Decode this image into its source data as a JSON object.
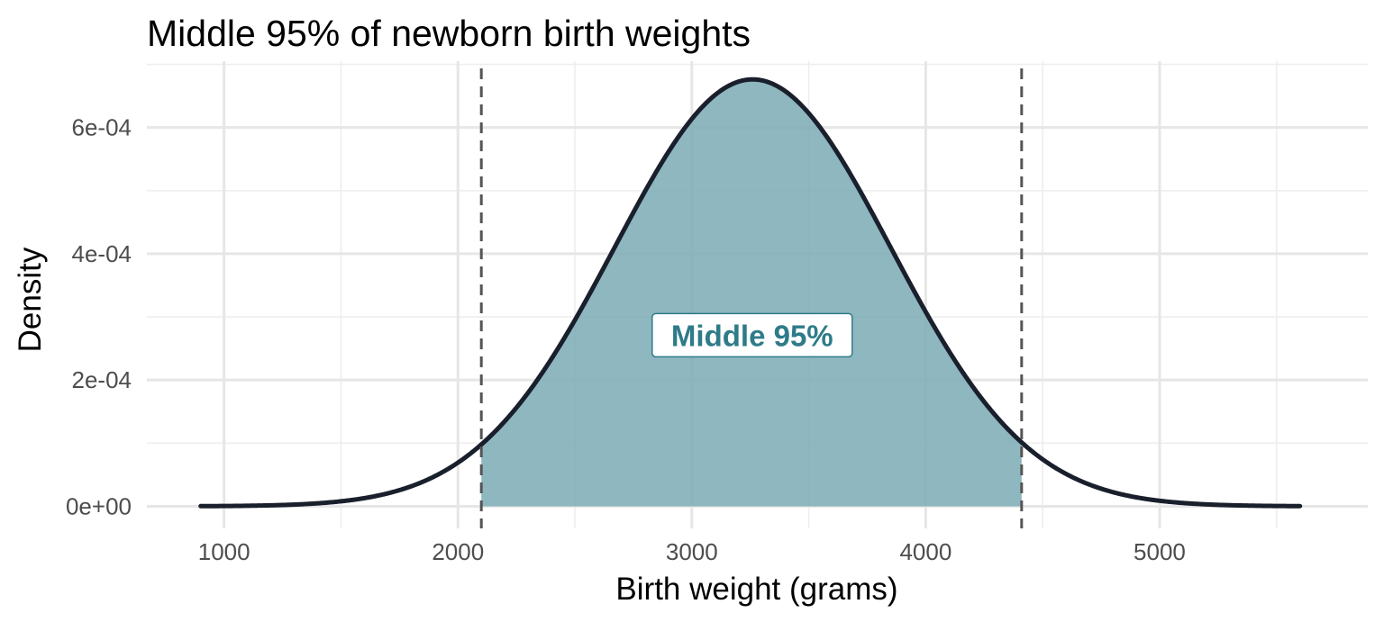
{
  "chart_data": {
    "type": "area",
    "title": "Middle 95% of newborn birth weights",
    "xlabel": "Birth weight (grams)",
    "ylabel": "Density",
    "xlim": [
      670,
      5890
    ],
    "ylim": [
      -3.5e-05,
      0.000705
    ],
    "x_ticks": [
      1000,
      2000,
      3000,
      4000,
      5000
    ],
    "x_tick_labels": [
      "1000",
      "2000",
      "3000",
      "4000",
      "5000"
    ],
    "y_ticks": [
      0,
      0.0002,
      0.0004,
      0.0006
    ],
    "y_tick_labels": [
      "0e+00",
      "2e-04",
      "4e-04",
      "6e-04"
    ],
    "grid": true,
    "curve": {
      "distribution": "normal",
      "mean": 3260,
      "sd": 590,
      "x_range": [
        900,
        5600
      ]
    },
    "shaded_region": {
      "x_range": [
        2100,
        4410
      ],
      "label": "Middle 95%"
    },
    "reference_lines": [
      2100,
      4410
    ],
    "colors": {
      "fill": "#7aaab4",
      "curve": "#1a1f2c",
      "annotation": "#2e7b89",
      "ref_line": "#555555"
    }
  }
}
